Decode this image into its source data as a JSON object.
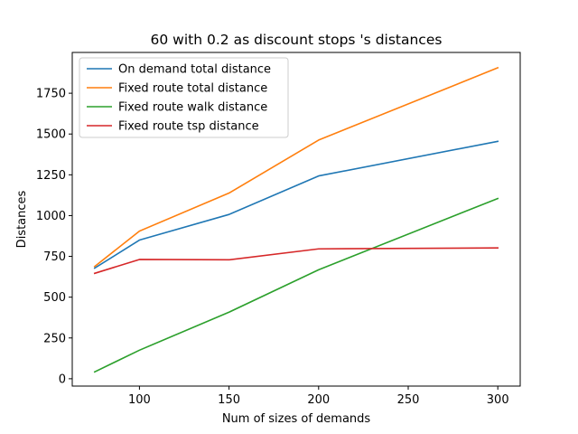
{
  "chart_data": {
    "type": "line",
    "title": "60 with 0.2 as discount stops 's distances",
    "xlabel": "Num of sizes of demands",
    "ylabel": "Distances",
    "x": [
      75,
      100,
      150,
      200,
      300
    ],
    "xlim": [
      62.5,
      312.5
    ],
    "ylim": [
      -45,
      2000
    ],
    "xticks": [
      100,
      150,
      200,
      250,
      300
    ],
    "yticks": [
      0,
      250,
      500,
      750,
      1000,
      1250,
      1500,
      1750
    ],
    "grid": false,
    "legend_position": "upper left",
    "series": [
      {
        "name": "On demand total distance",
        "color": "#1f77b4",
        "values": [
          678,
          850,
          1007,
          1243,
          1455
        ]
      },
      {
        "name": "Fixed route total distance",
        "color": "#ff7f0e",
        "values": [
          688,
          905,
          1138,
          1463,
          1906
        ]
      },
      {
        "name": "Fixed route walk distance",
        "color": "#2ca02c",
        "values": [
          42,
          175,
          408,
          668,
          1105
        ]
      },
      {
        "name": "Fixed route tsp distance",
        "color": "#d62728",
        "values": [
          646,
          731,
          729,
          796,
          802
        ]
      }
    ]
  }
}
